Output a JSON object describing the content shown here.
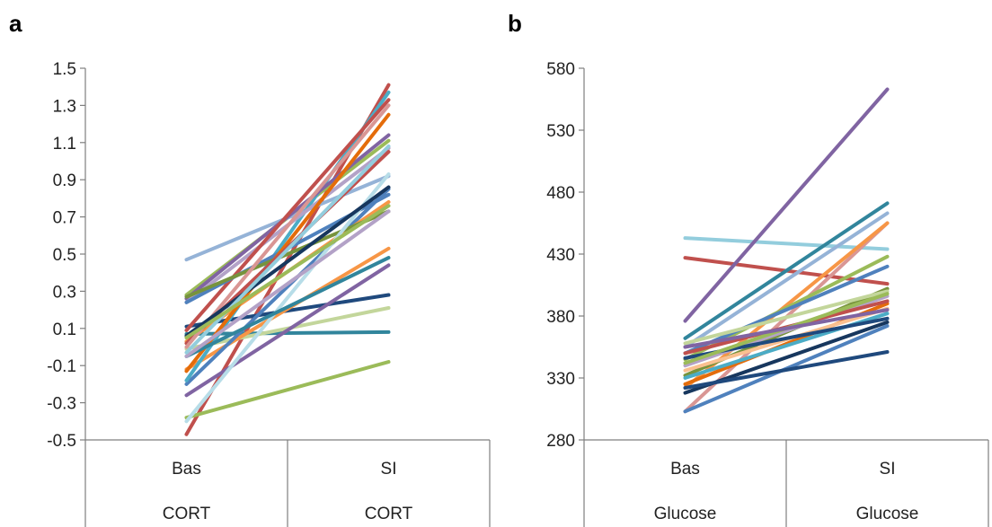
{
  "chart_data": [
    {
      "panel_label": "a",
      "type": "line",
      "categories": [
        [
          "Bas",
          "CORT"
        ],
        [
          "SI",
          "CORT"
        ]
      ],
      "ylim": [
        -0.5,
        1.5
      ],
      "yticks": [
        "-0.5",
        "-0.3",
        "-0.1",
        "0.1",
        "0.3",
        "0.5",
        "0.7",
        "0.9",
        "1.1",
        "1.3",
        "1.5"
      ],
      "ytick_values": [
        -0.5,
        -0.3,
        -0.1,
        0.1,
        0.3,
        0.5,
        0.7,
        0.9,
        1.1,
        1.3,
        1.5
      ],
      "grid": false,
      "series": [
        {
          "color": "#c0504d",
          "values": [
            -0.47,
            1.41
          ]
        },
        {
          "color": "#9bbb59",
          "values": [
            0.28,
            1.11
          ]
        },
        {
          "color": "#95b3d7",
          "values": [
            0.47,
            0.92
          ]
        },
        {
          "color": "#1f497d",
          "values": [
            0.11,
            0.28
          ]
        },
        {
          "color": "#31859c",
          "values": [
            0.07,
            0.08
          ]
        },
        {
          "color": "#c3d69b",
          "values": [
            -0.01,
            0.21
          ]
        },
        {
          "color": "#9bbb59",
          "values": [
            -0.38,
            -0.08
          ]
        },
        {
          "color": "#8064a2",
          "values": [
            -0.26,
            0.44
          ]
        },
        {
          "color": "#f79646",
          "values": [
            -0.12,
            0.53
          ]
        },
        {
          "color": "#4f81bd",
          "values": [
            -0.2,
            0.85
          ]
        },
        {
          "color": "#4bacc6",
          "values": [
            -0.18,
            1.37
          ]
        },
        {
          "color": "#8064a2",
          "values": [
            0.26,
            1.14
          ]
        },
        {
          "color": "#b3a2c7",
          "values": [
            0.24,
            1.07
          ]
        },
        {
          "color": "#f79646",
          "values": [
            0.03,
            0.78
          ]
        },
        {
          "color": "#c0504d",
          "values": [
            0.09,
            1.33
          ]
        },
        {
          "color": "#4f81bd",
          "values": [
            0.24,
            0.82
          ]
        },
        {
          "color": "#77933c",
          "values": [
            0.27,
            0.73
          ]
        },
        {
          "color": "#e46c0a",
          "values": [
            -0.13,
            1.25
          ]
        },
        {
          "color": "#b7dde8",
          "values": [
            -0.4,
            0.93
          ]
        },
        {
          "color": "#c0504d",
          "values": [
            0.02,
            1.05
          ]
        },
        {
          "color": "#31859c",
          "values": [
            -0.05,
            0.48
          ]
        },
        {
          "color": "#d99694",
          "values": [
            0.0,
            1.3
          ]
        },
        {
          "color": "#b3a2c7",
          "values": [
            -0.05,
            0.73
          ]
        },
        {
          "color": "#17375e",
          "values": [
            0.06,
            0.86
          ]
        },
        {
          "color": "#93cddd",
          "values": [
            -0.03,
            1.08
          ]
        },
        {
          "color": "#9bbb59",
          "values": [
            0.05,
            0.76
          ]
        }
      ]
    },
    {
      "panel_label": "b",
      "type": "line",
      "categories": [
        [
          "Bas",
          "Glucose"
        ],
        [
          "SI",
          "Glucose"
        ]
      ],
      "ylim": [
        280,
        580
      ],
      "yticks": [
        "280",
        "330",
        "380",
        "430",
        "480",
        "530",
        "580"
      ],
      "ytick_values": [
        280,
        330,
        380,
        430,
        480,
        530,
        580
      ],
      "grid": false,
      "series": [
        {
          "color": "#93cddd",
          "values": [
            443,
            434
          ]
        },
        {
          "color": "#c0504d",
          "values": [
            427,
            406
          ]
        },
        {
          "color": "#8064a2",
          "values": [
            376,
            563
          ]
        },
        {
          "color": "#31859c",
          "values": [
            362,
            471
          ]
        },
        {
          "color": "#95b3d7",
          "values": [
            355,
            463
          ]
        },
        {
          "color": "#d99694",
          "values": [
            303,
            455
          ]
        },
        {
          "color": "#f79646",
          "values": [
            322,
            455
          ]
        },
        {
          "color": "#9bbb59",
          "values": [
            345,
            428
          ]
        },
        {
          "color": "#4f81bd",
          "values": [
            350,
            420
          ]
        },
        {
          "color": "#77933c",
          "values": [
            332,
            402
          ]
        },
        {
          "color": "#c3d69b",
          "values": [
            358,
            400
          ]
        },
        {
          "color": "#b3a2c7",
          "values": [
            340,
            396
          ]
        },
        {
          "color": "#e46c0a",
          "values": [
            325,
            390
          ]
        },
        {
          "color": "#fac090",
          "values": [
            336,
            386
          ]
        },
        {
          "color": "#4bacc6",
          "values": [
            330,
            382
          ]
        },
        {
          "color": "#1f497d",
          "values": [
            346,
            378
          ]
        },
        {
          "color": "#17375e",
          "values": [
            318,
            375
          ]
        },
        {
          "color": "#4f81bd",
          "values": [
            303,
            372
          ]
        },
        {
          "color": "#1f497d",
          "values": [
            322,
            351
          ]
        },
        {
          "color": "#c0504d",
          "values": [
            350,
            392
          ]
        },
        {
          "color": "#9bbb59",
          "values": [
            342,
            398
          ]
        },
        {
          "color": "#8064a2",
          "values": [
            355,
            385
          ]
        }
      ]
    }
  ]
}
